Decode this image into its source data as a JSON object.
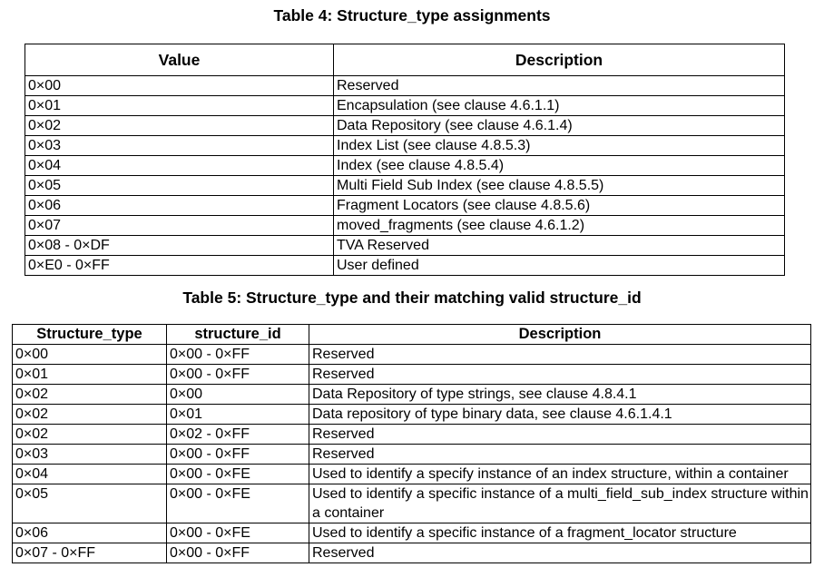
{
  "table4": {
    "caption": "Table 4: Structure_type assignments",
    "headers": [
      "Value",
      "Description"
    ],
    "rows": [
      [
        "0×00",
        "Reserved"
      ],
      [
        "0×01",
        "Encapsulation (see clause 4.6.1.1)"
      ],
      [
        "0×02",
        "Data Repository (see clause 4.6.1.4)"
      ],
      [
        "0×03",
        "Index List (see clause 4.8.5.3)"
      ],
      [
        "0×04",
        "Index (see clause 4.8.5.4)"
      ],
      [
        "0×05",
        "Multi Field Sub Index (see clause 4.8.5.5)"
      ],
      [
        "0×06",
        "Fragment Locators (see clause 4.8.5.6)"
      ],
      [
        "0×07",
        "moved_fragments (see clause 4.6.1.2)"
      ],
      [
        "0×08 - 0×DF",
        "TVA Reserved"
      ],
      [
        "0×E0 - 0×FF",
        "User defined"
      ]
    ]
  },
  "table5": {
    "caption": "Table 5: Structure_type and their matching valid structure_id",
    "headers": [
      "Structure_type",
      "structure_id",
      "Description"
    ],
    "rows": [
      [
        "0×00",
        "0×00 - 0×FF",
        "Reserved"
      ],
      [
        "0×01",
        "0×00 - 0×FF",
        "Reserved"
      ],
      [
        "0×02",
        "0×00",
        "Data Repository of type strings, see clause 4.8.4.1"
      ],
      [
        "0×02",
        "0×01",
        "Data repository of type binary data, see clause 4.6.1.4.1"
      ],
      [
        "0×02",
        "0×02 - 0×FF",
        "Reserved"
      ],
      [
        "0×03",
        "0×00 - 0×FF",
        "Reserved"
      ],
      [
        "0×04",
        "0×00 - 0×FE",
        "Used to identify a specify instance of an index structure, within a container"
      ],
      [
        "0×05",
        "0×00 - 0×FE",
        "Used to identify a specific instance of a multi_field_sub_index structure within a container"
      ],
      [
        "0×06",
        "0×00 - 0×FE",
        "Used to identify a specific instance of a fragment_locator structure"
      ],
      [
        "0×07 - 0×FF",
        "0×00 - 0×FF",
        "Reserved"
      ]
    ]
  }
}
